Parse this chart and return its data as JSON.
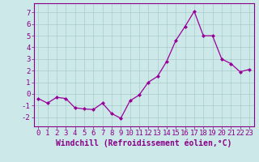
{
  "x": [
    0,
    1,
    2,
    3,
    4,
    5,
    6,
    7,
    8,
    9,
    10,
    11,
    12,
    13,
    14,
    15,
    16,
    17,
    18,
    19,
    20,
    21,
    22,
    23
  ],
  "y": [
    -0.4,
    -0.8,
    -0.3,
    -0.4,
    -1.2,
    -1.3,
    -1.35,
    -0.8,
    -1.7,
    -2.1,
    -0.6,
    -0.1,
    1.0,
    1.5,
    2.8,
    4.6,
    5.8,
    7.1,
    5.0,
    5.0,
    3.0,
    2.6,
    1.9,
    2.1
  ],
  "line_color": "#990099",
  "marker": "D",
  "marker_size": 2.0,
  "bg_color": "#cce8e8",
  "grid_color": "#aacccc",
  "xlabel": "Windchill (Refroidissement éolien,°C)",
  "ylim": [
    -2.8,
    7.8
  ],
  "xlim": [
    -0.5,
    23.5
  ],
  "yticks": [
    -2,
    -1,
    0,
    1,
    2,
    3,
    4,
    5,
    6,
    7
  ],
  "xticks": [
    0,
    1,
    2,
    3,
    4,
    5,
    6,
    7,
    8,
    9,
    10,
    11,
    12,
    13,
    14,
    15,
    16,
    17,
    18,
    19,
    20,
    21,
    22,
    23
  ],
  "tick_color": "#880088",
  "label_color": "#880088",
  "font_size": 6.5,
  "xlabel_font_size": 7.0,
  "axis_color": "#880088",
  "linewidth": 0.9
}
